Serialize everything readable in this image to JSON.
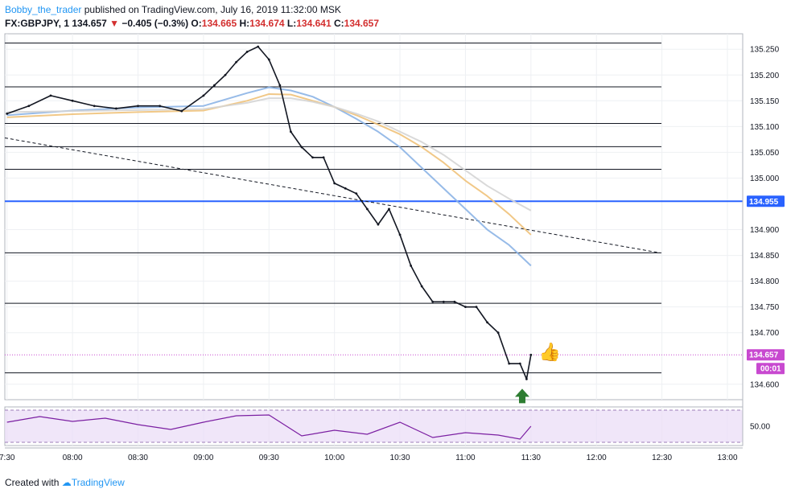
{
  "header": {
    "author": "Bobby_the_trader",
    "published": "published on TradingView.com, July 16, 2019 11:32:00 MSK",
    "symbol": "FX:GBPJPY, 1",
    "last": "134.657",
    "change": "−0.405 (−0.3%)",
    "o_label": "O:",
    "o_value": "134.665",
    "h_label": "H:",
    "h_value": "134.674",
    "l_label": "L:",
    "l_value": "134.641",
    "c_label": "C:",
    "c_value": "134.657"
  },
  "footer": {
    "created_with": "Created with",
    "brand": "TradingView"
  },
  "colors": {
    "candle": "#131722",
    "ma_fast": "#8cb4e6",
    "ma_mid": "#f0c27a",
    "ma_slow": "#d5d5d5",
    "highlight_line": "#2962ff",
    "price_tag": "#c849d0",
    "rsi_line": "#7b1fa2",
    "rsi_band": "#eadcf7",
    "arrow": "#2e7d32",
    "thumb": "#3ad13a"
  },
  "chart_data": {
    "type": "line",
    "title": "",
    "y_ticks": [
      "135.250",
      "135.200",
      "135.150",
      "135.100",
      "135.050",
      "135.000",
      "134.900",
      "134.850",
      "134.800",
      "134.750",
      "134.700",
      "134.600"
    ],
    "x_ticks": [
      "7:30",
      "08:00",
      "08:30",
      "09:00",
      "09:30",
      "10:00",
      "10:30",
      "11:00",
      "11:30",
      "12:00",
      "12:30",
      "13:00"
    ],
    "ylim": [
      134.57,
      135.28
    ],
    "xlim": [
      "07:29",
      "13:07"
    ],
    "price_tags": {
      "highlight": "134.955",
      "last": "134.657",
      "countdown": "00:01"
    },
    "horizontal_levels": [
      135.262,
      135.177,
      135.106,
      135.061,
      135.017,
      134.955,
      134.855,
      134.757,
      134.622
    ],
    "trendline": {
      "x": [
        "07:29",
        "12:29"
      ],
      "y": [
        135.078,
        134.855
      ]
    },
    "series": [
      {
        "kind": "close",
        "x": [
          "07:30",
          "07:40",
          "07:50",
          "08:00",
          "08:10",
          "08:20",
          "08:30",
          "08:40",
          "08:50",
          "09:00",
          "09:05",
          "09:10",
          "09:15",
          "09:20",
          "09:25",
          "09:30",
          "09:35",
          "09:40",
          "09:45",
          "09:50",
          "09:55",
          "10:00",
          "10:05",
          "10:10",
          "10:15",
          "10:20",
          "10:25",
          "10:30",
          "10:35",
          "10:40",
          "10:45",
          "10:50",
          "10:55",
          "11:00",
          "11:05",
          "11:10",
          "11:15",
          "11:20",
          "11:25",
          "11:28",
          "11:30"
        ],
        "y": [
          135.125,
          135.14,
          135.16,
          135.15,
          135.14,
          135.135,
          135.14,
          135.14,
          135.13,
          135.16,
          135.18,
          135.2,
          135.225,
          135.245,
          135.255,
          135.23,
          135.18,
          135.09,
          135.06,
          135.04,
          135.04,
          134.99,
          134.98,
          134.97,
          134.94,
          134.91,
          134.94,
          134.89,
          134.83,
          134.79,
          134.76,
          134.76,
          134.76,
          134.75,
          134.75,
          134.72,
          134.7,
          134.64,
          134.64,
          134.61,
          134.657
        ]
      },
      {
        "kind": "ma_fast",
        "x": [
          "07:30",
          "08:00",
          "08:30",
          "09:00",
          "09:20",
          "09:30",
          "09:40",
          "09:50",
          "10:00",
          "10:10",
          "10:20",
          "10:30",
          "10:40",
          "10:50",
          "11:00",
          "11:10",
          "11:20",
          "11:30"
        ],
        "y": [
          135.122,
          135.131,
          135.137,
          135.14,
          135.165,
          135.176,
          135.17,
          135.158,
          135.138,
          135.115,
          135.09,
          135.06,
          135.02,
          134.98,
          134.94,
          134.9,
          134.87,
          134.83
        ]
      },
      {
        "kind": "ma_mid",
        "x": [
          "07:30",
          "08:00",
          "08:30",
          "09:00",
          "09:20",
          "09:30",
          "09:40",
          "09:50",
          "10:00",
          "10:10",
          "10:20",
          "10:30",
          "10:40",
          "10:50",
          "11:00",
          "11:10",
          "11:20",
          "11:30"
        ],
        "y": [
          135.118,
          135.124,
          135.128,
          135.131,
          135.15,
          135.163,
          135.162,
          135.15,
          135.138,
          135.122,
          135.104,
          135.085,
          135.06,
          135.03,
          134.995,
          134.965,
          134.93,
          134.89
        ]
      },
      {
        "kind": "ma_slow",
        "x": [
          "07:30",
          "08:00",
          "08:30",
          "09:00",
          "09:20",
          "09:30",
          "09:40",
          "09:50",
          "10:00",
          "10:10",
          "10:20",
          "10:30",
          "10:40",
          "10:50",
          "11:00",
          "11:10",
          "11:20",
          "11:30"
        ],
        "y": [
          135.128,
          135.13,
          135.132,
          135.134,
          135.146,
          135.155,
          135.155,
          135.148,
          135.138,
          135.125,
          135.11,
          135.09,
          135.07,
          135.045,
          135.015,
          134.985,
          134.96,
          134.937
        ]
      }
    ],
    "rsi": {
      "label": "50.00",
      "x": [
        "07:30",
        "07:45",
        "08:00",
        "08:15",
        "08:30",
        "08:45",
        "09:00",
        "09:15",
        "09:30",
        "09:45",
        "10:00",
        "10:15",
        "10:30",
        "10:45",
        "11:00",
        "11:15",
        "11:25",
        "11:30"
      ],
      "y": [
        55,
        62,
        56,
        60,
        52,
        46,
        55,
        63,
        64,
        38,
        45,
        40,
        55,
        36,
        42,
        39,
        34,
        50
      ]
    }
  }
}
